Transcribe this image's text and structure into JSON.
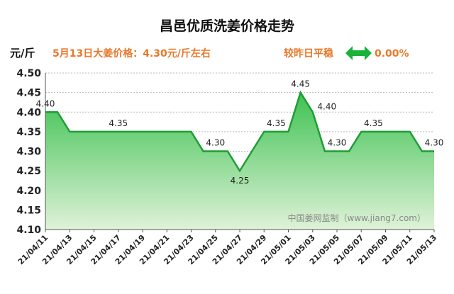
{
  "chart_data": {
    "type": "area",
    "title": "昌邑优质洗姜价格走势",
    "ylabel": "元/斤",
    "ylim": [
      4.1,
      4.5
    ],
    "yticks": [
      "4.10",
      "4.15",
      "4.20",
      "4.25",
      "4.30",
      "4.35",
      "4.40",
      "4.45",
      "4.50"
    ],
    "x": [
      "21/04/11",
      "21/04/12",
      "21/04/13",
      "21/04/14",
      "21/04/15",
      "21/04/16",
      "21/04/17",
      "21/04/18",
      "21/04/19",
      "21/04/20",
      "21/04/21",
      "21/04/22",
      "21/04/23",
      "21/04/24",
      "21/04/25",
      "21/04/26",
      "21/04/27",
      "21/04/28",
      "21/04/29",
      "21/04/30",
      "21/05/01",
      "21/05/02",
      "21/05/03",
      "21/05/04",
      "21/05/05",
      "21/05/06",
      "21/05/07",
      "21/05/08",
      "21/05/09",
      "21/05/10",
      "21/05/11",
      "21/05/12",
      "21/05/13"
    ],
    "xtick_labels": [
      "21/04/11",
      "21/04/13",
      "21/04/15",
      "21/04/17",
      "21/04/19",
      "21/04/21",
      "21/04/23",
      "21/04/25",
      "21/04/27",
      "21/04/29",
      "21/05/01",
      "21/05/03",
      "21/05/05",
      "21/05/07",
      "21/05/09",
      "21/05/11",
      "21/05/13"
    ],
    "values": [
      4.4,
      4.4,
      4.35,
      4.35,
      4.35,
      4.35,
      4.35,
      4.35,
      4.35,
      4.35,
      4.35,
      4.35,
      4.35,
      4.3,
      4.3,
      4.3,
      4.25,
      4.3,
      4.35,
      4.35,
      4.35,
      4.45,
      4.4,
      4.3,
      4.3,
      4.3,
      4.35,
      4.35,
      4.35,
      4.35,
      4.35,
      4.3,
      4.3
    ],
    "data_labels": [
      {
        "x": "21/04/11",
        "text": "4.40",
        "position": "above"
      },
      {
        "x": "21/04/17",
        "text": "4.35",
        "position": "above"
      },
      {
        "x": "21/04/25",
        "text": "4.30",
        "position": "above"
      },
      {
        "x": "21/04/27",
        "text": "4.25",
        "position": "below"
      },
      {
        "x": "21/04/30",
        "text": "4.35",
        "position": "above"
      },
      {
        "x": "21/05/02",
        "text": "4.45",
        "position": "above"
      },
      {
        "x": "21/05/03",
        "text": "4.40",
        "position": "above-right"
      },
      {
        "x": "21/05/05",
        "text": "4.30",
        "position": "above"
      },
      {
        "x": "21/05/08",
        "text": "4.35",
        "position": "above"
      },
      {
        "x": "21/05/13",
        "text": "4.30",
        "position": "above"
      }
    ],
    "grid": true,
    "legend": "none"
  },
  "header": {
    "price_note": "5月13日大姜价格：4.30元/斤左右",
    "compare_label": "较昨日平稳",
    "compare_value": "0.00%",
    "compare_icon": "double-arrow-icon"
  },
  "source_note": "中国姜网监制（www.jiang7.com）",
  "colors": {
    "line": "#1e9e34",
    "fill_top": "#3ec252",
    "fill_bottom": "#dff2d8",
    "grid": "#bbbbbb",
    "accent": "#e8782a",
    "arrow": "#19b23a"
  }
}
